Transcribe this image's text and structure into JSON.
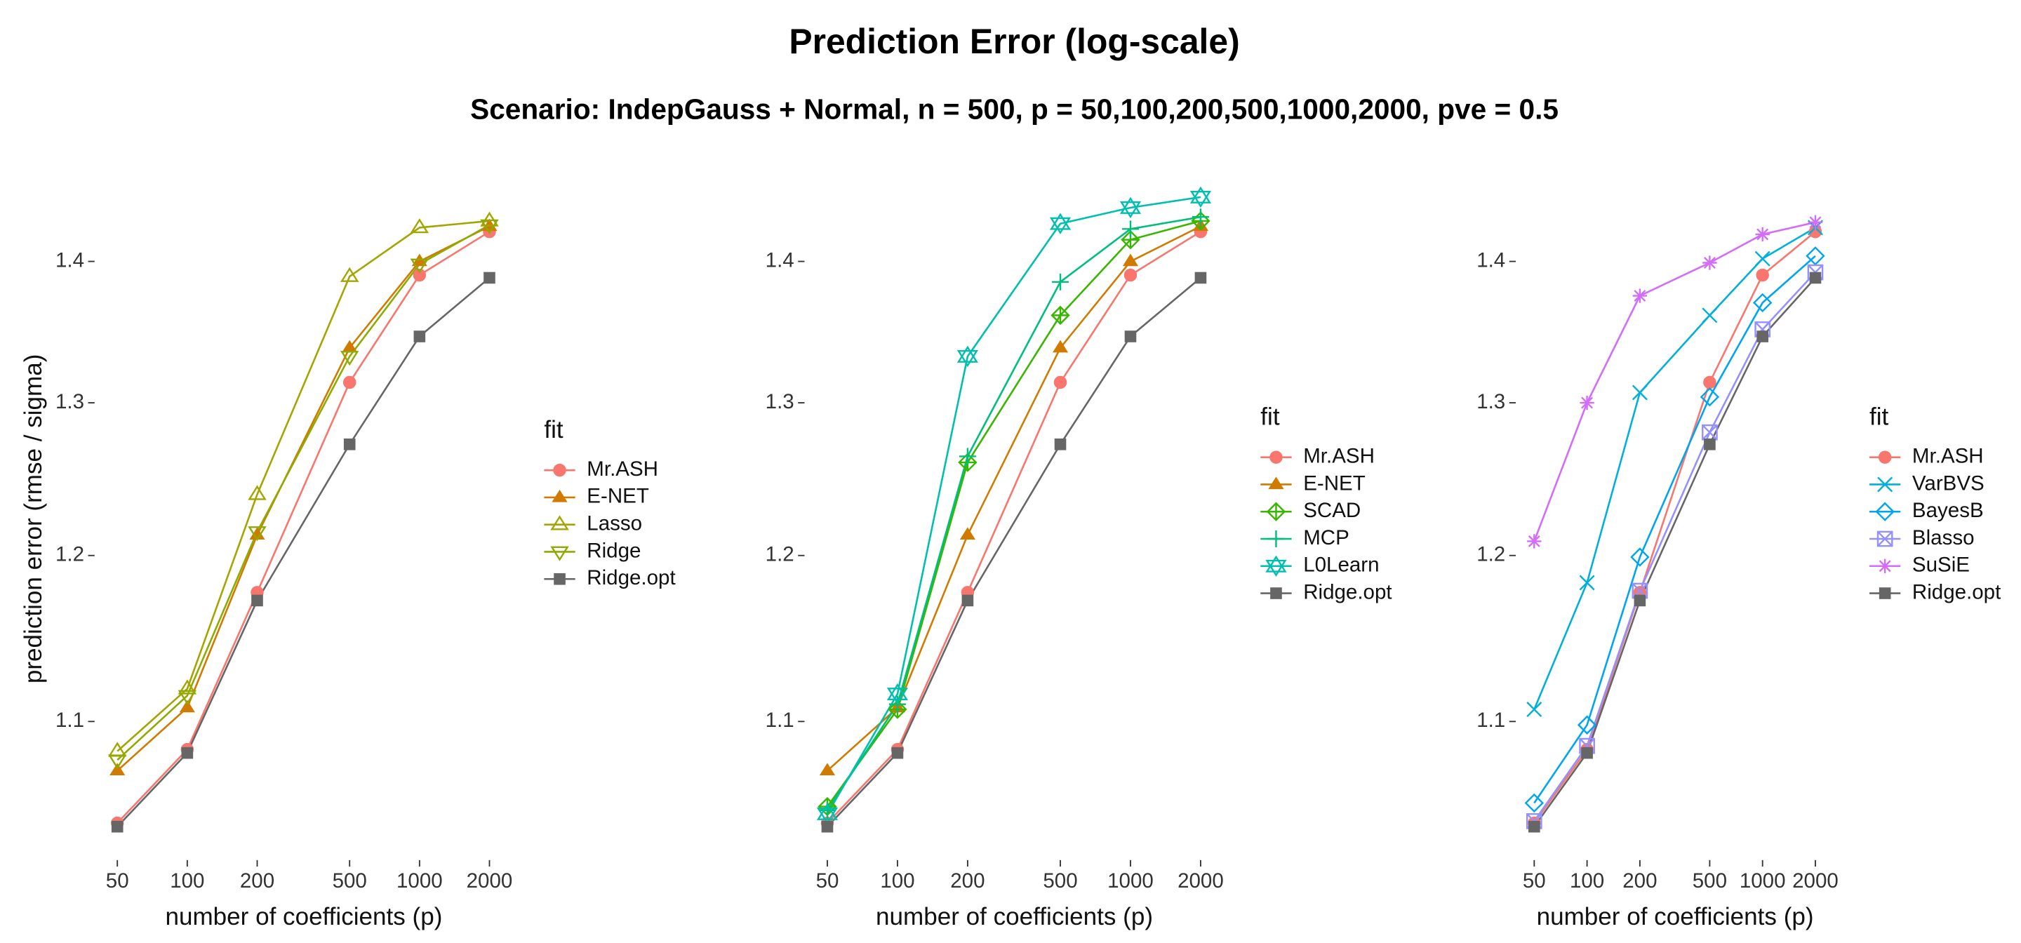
{
  "chart_data": {
    "title": "Prediction Error (log-scale)",
    "subtitle": "Scenario: IndepGauss + Normal, n = 500, p = 50,100,200,500,1000,2000, pve = 0.5",
    "panels": [
      {
        "type": "line",
        "log_x": true,
        "log_y": true,
        "grid": false,
        "y_label": "prediction error (rmse / sigma)",
        "x_label": "number of coefficients (p)",
        "legend_title": "fit",
        "x": [
          50,
          100,
          200,
          500,
          1000,
          2000
        ],
        "xlim": [
          42,
          2400
        ],
        "xticks": [
          50,
          100,
          200,
          500,
          1000,
          2000
        ],
        "ylim": [
          1.025,
          1.46
        ],
        "yticks": [
          1.1,
          1.2,
          1.3,
          1.4
        ],
        "series": [
          {
            "name": "Mr.ASH",
            "color": "#F8766D",
            "marker": "circle",
            "values": [
              1.043,
              1.084,
              1.177,
              1.314,
              1.39,
              1.422
            ]
          },
          {
            "name": "E-NET",
            "color": "#D07B00",
            "marker": "triangle",
            "values": [
              1.072,
              1.108,
              1.213,
              1.338,
              1.4,
              1.426
            ]
          },
          {
            "name": "Lasso",
            "color": "#A3A500",
            "marker": "triangle-open",
            "values": [
              1.083,
              1.119,
              1.239,
              1.389,
              1.425,
              1.43
            ]
          },
          {
            "name": "Ridge",
            "color": "#8FAA00",
            "marker": "triangle-down-open",
            "values": [
              1.078,
              1.115,
              1.215,
              1.332,
              1.398,
              1.427
            ]
          },
          {
            "name": "Ridge.opt",
            "color": "#666666",
            "marker": "square",
            "values": [
              1.041,
              1.082,
              1.172,
              1.272,
              1.346,
              1.388
            ]
          }
        ]
      },
      {
        "type": "line",
        "log_x": true,
        "log_y": true,
        "grid": false,
        "x_label": "number of coefficients (p)",
        "legend_title": "fit",
        "x": [
          50,
          100,
          200,
          500,
          1000,
          2000
        ],
        "xlim": [
          42,
          2400
        ],
        "xticks": [
          50,
          100,
          200,
          500,
          1000,
          2000
        ],
        "ylim": [
          1.025,
          1.46
        ],
        "yticks": [
          1.1,
          1.2,
          1.3,
          1.4
        ],
        "series": [
          {
            "name": "Mr.ASH",
            "color": "#F8766D",
            "marker": "circle",
            "values": [
              1.043,
              1.084,
              1.177,
              1.314,
              1.39,
              1.422
            ]
          },
          {
            "name": "E-NET",
            "color": "#D07B00",
            "marker": "triangle",
            "values": [
              1.072,
              1.108,
              1.213,
              1.338,
              1.4,
              1.426
            ]
          },
          {
            "name": "SCAD",
            "color": "#39B600",
            "marker": "diamond-plus",
            "values": [
              1.052,
              1.107,
              1.26,
              1.361,
              1.416,
              1.43
            ]
          },
          {
            "name": "MCP",
            "color": "#00BF7D",
            "marker": "plus",
            "values": [
              1.05,
              1.11,
              1.264,
              1.385,
              1.424,
              1.433
            ]
          },
          {
            "name": "L0Learn",
            "color": "#00BFAE",
            "marker": "star6",
            "values": [
              1.048,
              1.116,
              1.332,
              1.428,
              1.44,
              1.448
            ]
          },
          {
            "name": "Ridge.opt",
            "color": "#666666",
            "marker": "square",
            "values": [
              1.041,
              1.082,
              1.172,
              1.272,
              1.346,
              1.388
            ]
          }
        ]
      },
      {
        "type": "line",
        "log_x": true,
        "log_y": true,
        "grid": false,
        "x_label": "number of coefficients (p)",
        "legend_title": "fit",
        "x": [
          50,
          100,
          200,
          500,
          1000,
          2000
        ],
        "xlim": [
          42,
          2400
        ],
        "xticks": [
          50,
          100,
          200,
          500,
          1000,
          2000
        ],
        "ylim": [
          1.025,
          1.46
        ],
        "yticks": [
          1.1,
          1.2,
          1.3,
          1.4
        ],
        "series": [
          {
            "name": "Mr.ASH",
            "color": "#F8766D",
            "marker": "circle",
            "values": [
              1.043,
              1.084,
              1.177,
              1.314,
              1.39,
              1.422
            ]
          },
          {
            "name": "VarBVS",
            "color": "#00B0D8",
            "marker": "cross",
            "values": [
              1.107,
              1.183,
              1.307,
              1.361,
              1.402,
              1.425
            ]
          },
          {
            "name": "BayesB",
            "color": "#00A5F0",
            "marker": "diamond",
            "values": [
              1.054,
              1.098,
              1.199,
              1.304,
              1.37,
              1.404
            ]
          },
          {
            "name": "Blasso",
            "color": "#9590FF",
            "marker": "square-x",
            "values": [
              1.044,
              1.086,
              1.178,
              1.28,
              1.351,
              1.392
            ]
          },
          {
            "name": "SuSiE",
            "color": "#D36DF9",
            "marker": "asterisk",
            "values": [
              1.209,
              1.3,
              1.375,
              1.399,
              1.42,
              1.429
            ]
          },
          {
            "name": "Ridge.opt",
            "color": "#666666",
            "marker": "square",
            "values": [
              1.041,
              1.082,
              1.172,
              1.272,
              1.346,
              1.388
            ]
          }
        ]
      }
    ]
  }
}
